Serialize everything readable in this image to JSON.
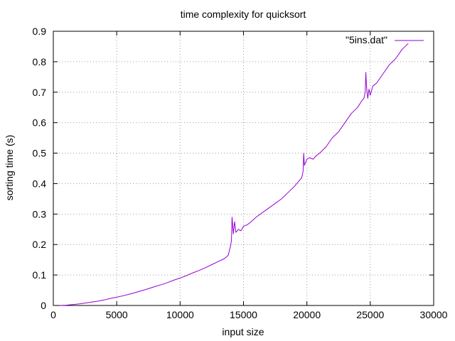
{
  "chart_data": {
    "type": "line",
    "title": "time complexity for quicksort",
    "xlabel": "input size",
    "ylabel": "sorting time (s)",
    "xlim": [
      0,
      30000
    ],
    "ylim": [
      0,
      0.9
    ],
    "x_ticks": [
      0,
      5000,
      10000,
      15000,
      20000,
      25000,
      30000
    ],
    "y_ticks": [
      0,
      0.1,
      0.2,
      0.3,
      0.4,
      0.5,
      0.6,
      0.7,
      0.8,
      0.9
    ],
    "x_tick_labels": [
      "0",
      "5000",
      "10000",
      "15000",
      "20000",
      "25000",
      "30000"
    ],
    "y_tick_labels": [
      "0",
      "0.1",
      "0.2",
      "0.3",
      "0.4",
      "0.5",
      "0.6",
      "0.7",
      "0.8",
      "0.9"
    ],
    "grid": true,
    "legend_position": "top-right",
    "series": [
      {
        "name": "\"5ins.dat\"",
        "color": "#9400d3",
        "x": [
          500,
          1000,
          1500,
          2000,
          2500,
          3000,
          3500,
          4000,
          4500,
          5000,
          5500,
          6000,
          6500,
          7000,
          7500,
          8000,
          8500,
          9000,
          9500,
          10000,
          10500,
          11000,
          11500,
          12000,
          12500,
          13000,
          13500,
          13800,
          14000,
          14050,
          14100,
          14200,
          14300,
          14400,
          14600,
          14800,
          15000,
          15300,
          15600,
          16000,
          16500,
          17000,
          17500,
          18000,
          18500,
          19000,
          19400,
          19600,
          19700,
          19750,
          19800,
          19900,
          20000,
          20200,
          20500,
          20700,
          21000,
          21500,
          22000,
          22500,
          23000,
          23500,
          24000,
          24300,
          24500,
          24600,
          24650,
          24700,
          24800,
          24900,
          25000,
          25200,
          25500,
          26000,
          26500,
          27000,
          27500,
          28000
        ],
        "y": [
          0.0,
          0.001,
          0.003,
          0.005,
          0.008,
          0.011,
          0.014,
          0.018,
          0.023,
          0.027,
          0.032,
          0.037,
          0.043,
          0.049,
          0.055,
          0.062,
          0.068,
          0.075,
          0.083,
          0.09,
          0.098,
          0.107,
          0.115,
          0.124,
          0.134,
          0.144,
          0.154,
          0.165,
          0.2,
          0.215,
          0.29,
          0.235,
          0.275,
          0.24,
          0.25,
          0.245,
          0.26,
          0.265,
          0.275,
          0.29,
          0.305,
          0.32,
          0.335,
          0.35,
          0.37,
          0.39,
          0.41,
          0.42,
          0.44,
          0.5,
          0.46,
          0.47,
          0.48,
          0.485,
          0.48,
          0.49,
          0.5,
          0.52,
          0.55,
          0.57,
          0.6,
          0.63,
          0.65,
          0.67,
          0.68,
          0.7,
          0.765,
          0.72,
          0.68,
          0.71,
          0.69,
          0.72,
          0.73,
          0.76,
          0.79,
          0.81,
          0.84,
          0.86
        ]
      }
    ]
  }
}
